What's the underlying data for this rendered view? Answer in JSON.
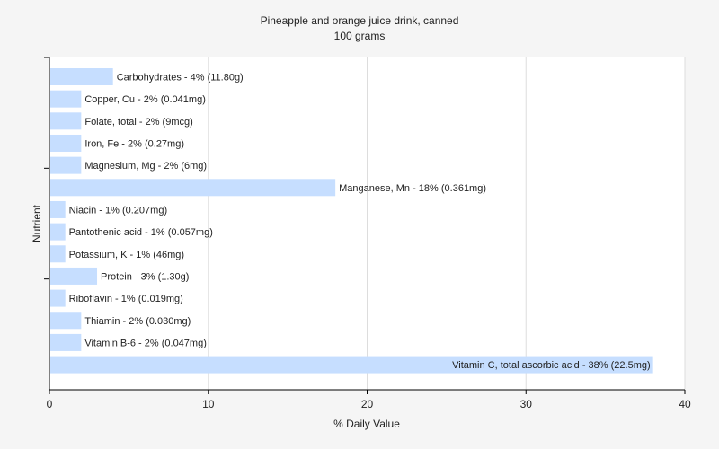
{
  "chart_data": {
    "type": "bar",
    "orientation": "horizontal",
    "title": "Pineapple and orange juice drink, canned",
    "subtitle": "100 grams",
    "xlabel": "% Daily Value",
    "ylabel": "Nutrient",
    "xlim": [
      0,
      40
    ],
    "xticks": [
      0,
      10,
      20,
      30,
      40
    ],
    "grid": true,
    "bar_color": "#c6deff",
    "categories": [
      "Carbohydrates",
      "Copper, Cu",
      "Folate, total",
      "Iron, Fe",
      "Magnesium, Mg",
      "Manganese, Mn",
      "Niacin",
      "Pantothenic acid",
      "Potassium, K",
      "Protein",
      "Riboflavin",
      "Thiamin",
      "Vitamin B-6",
      "Vitamin C, total ascorbic acid"
    ],
    "values": [
      4,
      2,
      2,
      2,
      2,
      18,
      1,
      1,
      1,
      3,
      1,
      2,
      2,
      38
    ],
    "labels": [
      "Carbohydrates - 4% (11.80g)",
      "Copper, Cu - 2% (0.041mg)",
      "Folate, total - 2% (9mcg)",
      "Iron, Fe - 2% (0.27mg)",
      "Magnesium, Mg - 2% (6mg)",
      "Manganese, Mn - 18% (0.361mg)",
      "Niacin - 1% (0.207mg)",
      "Pantothenic acid - 1% (0.057mg)",
      "Potassium, K - 1% (46mg)",
      "Protein - 3% (1.30g)",
      "Riboflavin - 1% (0.019mg)",
      "Thiamin - 2% (0.030mg)",
      "Vitamin B-6 - 2% (0.047mg)",
      "Vitamin C, total ascorbic acid - 38% (22.5mg)"
    ]
  }
}
